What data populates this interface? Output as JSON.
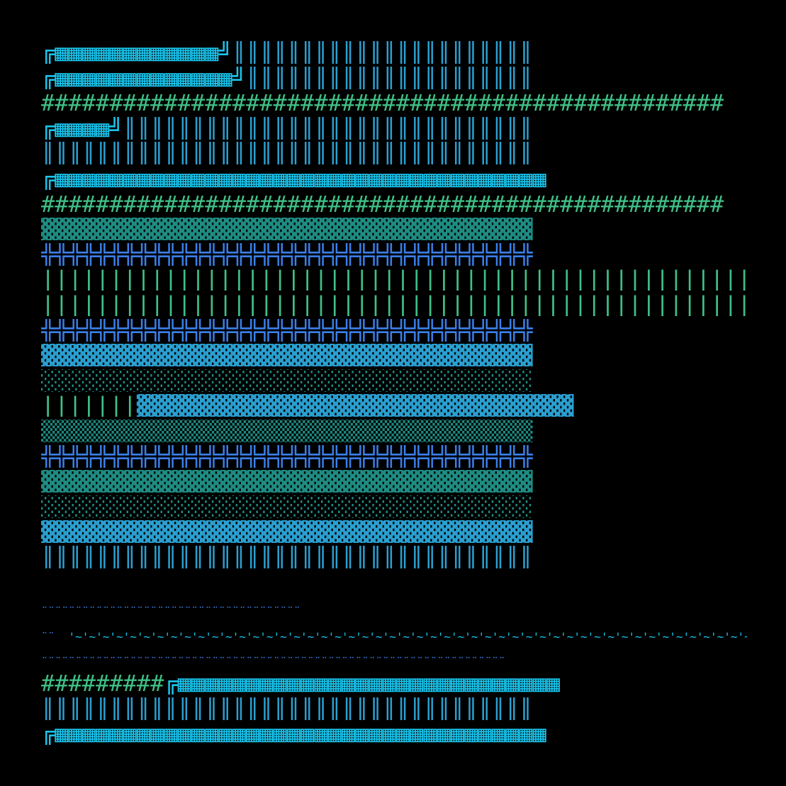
{
  "palette": {
    "background": "#000000",
    "cyan": "#19c4ec",
    "sky": "#2a9fd0",
    "blue": "#3a7fe8",
    "green": "#3fbf86",
    "teal": "#1e8c82"
  },
  "rows": [
    {
      "segments": [
        {
          "text": "╔▦▦▦▦▦▦▦▦▦▦▦▦╝",
          "color": "cyan"
        },
        {
          "text": "║║║║║║║║║║║║║║║║║║║║║║",
          "color": "sky"
        }
      ]
    },
    {
      "segments": [
        {
          "text": "╔▦▦▦▦▦▦▦▦▦▦▦▦▦╝",
          "color": "cyan"
        },
        {
          "text": "║║║║║║║║║║║║║║║║║║║║║",
          "color": "sky"
        }
      ]
    },
    {
      "segments": [
        {
          "text": "##################################################",
          "color": "green"
        }
      ]
    },
    {
      "segments": [
        {
          "text": "╔▦▦▦▦╝",
          "color": "cyan"
        },
        {
          "text": "║║║║║║║║║║║║║║║║║║║║║║║║║║║║║║",
          "color": "sky"
        }
      ]
    },
    {
      "segments": [
        {
          "text": "║║║║║║║║║║║║║║║║║║║║║║║║║║║║║║║║║║║║",
          "color": "sky"
        }
      ]
    },
    {
      "segments": [
        {
          "text": "╔▦▦▦▦▦▦▦▦▦▦▦▦▦▦▦▦▦▦▦▦▦▦▦▦▦▦▦▦▦▦▦▦▦▦▦▦",
          "color": "cyan"
        }
      ]
    },
    {
      "segments": [
        {
          "text": "##################################################",
          "color": "green"
        }
      ]
    },
    {
      "segments": [
        {
          "text": "▓▓▓▓▓▓▓▓▓▓▓▓▓▓▓▓▓▓▓▓▓▓▓▓▓▓▓▓▓▓▓▓▓▓▓▓",
          "color": "teal"
        }
      ]
    },
    {
      "segments": [
        {
          "text": "╬╬╬╬╬╬╬╬╬╬╬╬╬╬╬╬╬╬╬╬╬╬╬╬╬╬╬╬╬╬╬╬╬╬╬╬",
          "color": "blue"
        }
      ]
    },
    {
      "segments": [
        {
          "text": "|||||||||||||||||||||||||||||||||||||||||||||||||||||||||||||||||||||||||||",
          "color": "green"
        }
      ]
    },
    {
      "segments": [
        {
          "text": "|||||||||||||||||||||||||||||||||||||||||||||||||||||||||||||||||||||||||||",
          "color": "green"
        }
      ]
    },
    {
      "segments": [
        {
          "text": "╬╬╬╬╬╬╬╬╬╬╬╬╬╬╬╬╬╬╬╬╬╬╬╬╬╬╬╬╬╬╬╬╬╬╬╬",
          "color": "blue"
        }
      ]
    },
    {
      "segments": [
        {
          "text": "▓▓▓▓▓▓▓▓▓▓▓▓▓▓▓▓▓▓▓▓▓▓▓▓▓▓▓▓▓▓▓▓▓▓▓▓",
          "color": "sky"
        }
      ]
    },
    {
      "segments": [
        {
          "text": "░░░░░░░░░░░░░░░░░░░░░░░░░░░░░░░░░░░░",
          "color": "teal"
        }
      ]
    },
    {
      "segments": [
        {
          "text": "|||||||",
          "color": "green"
        },
        {
          "text": "▓▓▓▓▓▓▓▓▓▓▓▓▓▓▓▓▓▓▓▓▓▓▓▓▓▓▓▓▓▓▓▓",
          "color": "sky"
        }
      ]
    },
    {
      "segments": [
        {
          "text": "▒▒▒▒▒▒▒▒▒▒▒▒▒▒▒▒▒▒▒▒▒▒▒▒▒▒▒▒▒▒▒▒▒▒▒▒",
          "color": "teal"
        }
      ]
    },
    {
      "segments": [
        {
          "text": "╬╬╬╬╬╬╬╬╬╬╬╬╬╬╬╬╬╬╬╬╬╬╬╬╬╬╬╬╬╬╬╬╬╬╬╬",
          "color": "blue"
        }
      ]
    },
    {
      "segments": [
        {
          "text": "▓▓▓▓▓▓▓▓▓▓▓▓▓▓▓▓▓▓▓▓▓▓▓▓▓▓▓▓▓▓▓▓▓▓▓▓",
          "color": "teal"
        }
      ]
    },
    {
      "segments": [
        {
          "text": "░░░░░░░░░░░░░░░░░░░░░░░░░░░░░░░░░░░░",
          "color": "teal"
        }
      ]
    },
    {
      "segments": [
        {
          "text": "▓▓▓▓▓▓▓▓▓▓▓▓▓▓▓▓▓▓▓▓▓▓▓▓▓▓▓▓▓▓▓▓▓▓▓▓",
          "color": "sky"
        }
      ]
    },
    {
      "segments": [
        {
          "text": "║║║║║║║║║║║║║║║║║║║║║║║║║║║║║║║║║║║║",
          "color": "sky"
        }
      ]
    },
    {
      "segments": [
        {
          "text": "",
          "color": "sky"
        }
      ]
    },
    {
      "segments": [
        {
          "text": "¨¨¨¨¨¨¨¨¨¨¨¨¨¨¨¨¨¨¨¨¨¨¨¨¨¨¨¨¨¨¨¨¨¨¨¨¨¨",
          "color": "blue",
          "small": true
        }
      ]
    },
    {
      "segments": [
        {
          "text": "¨¨  ",
          "color": "blue",
          "small": true
        },
        {
          "text": "'~'~'~'~'~'~'~'~'~'~'~'~'~'~'~'~'~'~'~'~'~'~'~'~'~'~'~'~'~'~'~'~'~'~'~'~'~'~'~'~'~'~'~'~'~'~'~'~'~'~'~'~'~'~'~'~'~'~'~'~'~'~",
          "color": "cyan",
          "small": true
        }
      ]
    },
    {
      "segments": [
        {
          "text": "¨¨¨¨¨¨¨¨¨¨¨¨¨¨¨¨¨¨¨¨¨¨¨¨¨¨¨¨¨¨¨¨¨¨¨¨¨¨¨¨¨¨¨¨¨¨¨¨¨¨¨¨¨¨¨¨¨¨¨¨¨¨¨¨¨¨¨¨",
          "color": "blue",
          "small": true
        }
      ]
    },
    {
      "segments": [
        {
          "text": "#########",
          "color": "green"
        },
        {
          "text": "╔▦▦▦▦▦▦▦▦▦▦▦▦▦▦▦▦▦▦▦▦▦▦▦▦▦▦▦▦",
          "color": "cyan"
        }
      ]
    },
    {
      "segments": [
        {
          "text": "║║║║║║║║║║║║║║║║║║║║║║║║║║║║║║║║║║║║",
          "color": "sky"
        }
      ]
    },
    {
      "segments": [
        {
          "text": "╔▦▦▦▦▦▦▦▦▦▦▦▦▦▦▦▦▦▦▦▦▦▦▦▦▦▦▦▦▦▦▦▦▦▦▦▦",
          "color": "cyan"
        }
      ]
    }
  ]
}
